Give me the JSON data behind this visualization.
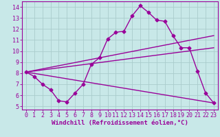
{
  "background_color": "#c8e8e8",
  "grid_color": "#aacccc",
  "line_color": "#990099",
  "marker": "D",
  "markersize": 2.5,
  "linewidth": 1.0,
  "xlim": [
    -0.5,
    23.5
  ],
  "ylim": [
    4.7,
    14.5
  ],
  "xticks": [
    0,
    1,
    2,
    3,
    4,
    5,
    6,
    7,
    8,
    9,
    10,
    11,
    12,
    13,
    14,
    15,
    16,
    17,
    18,
    19,
    20,
    21,
    22,
    23
  ],
  "yticks": [
    5,
    6,
    7,
    8,
    9,
    10,
    11,
    12,
    13,
    14
  ],
  "xlabel": "Windchill (Refroidissement éolien,°C)",
  "series1_x": [
    0,
    1,
    2,
    3,
    4,
    5,
    6,
    7,
    8,
    9,
    10,
    11,
    12,
    13,
    14,
    15,
    16,
    17,
    18,
    19,
    20,
    21,
    22,
    23
  ],
  "series1_y": [
    8.1,
    7.7,
    7.0,
    6.5,
    5.5,
    5.4,
    6.2,
    7.0,
    8.8,
    9.4,
    11.1,
    11.7,
    11.8,
    13.2,
    14.1,
    13.5,
    12.8,
    12.7,
    11.4,
    10.3,
    10.3,
    8.2,
    6.2,
    5.3
  ],
  "series2_x": [
    0,
    23
  ],
  "series2_y": [
    8.1,
    11.4
  ],
  "series3_x": [
    0,
    23
  ],
  "series3_y": [
    8.1,
    10.3
  ],
  "series4_x": [
    0,
    23
  ],
  "series4_y": [
    8.1,
    5.3
  ],
  "xlabel_fontsize": 6.5,
  "tick_fontsize": 6.0,
  "tick_color": "#990099"
}
